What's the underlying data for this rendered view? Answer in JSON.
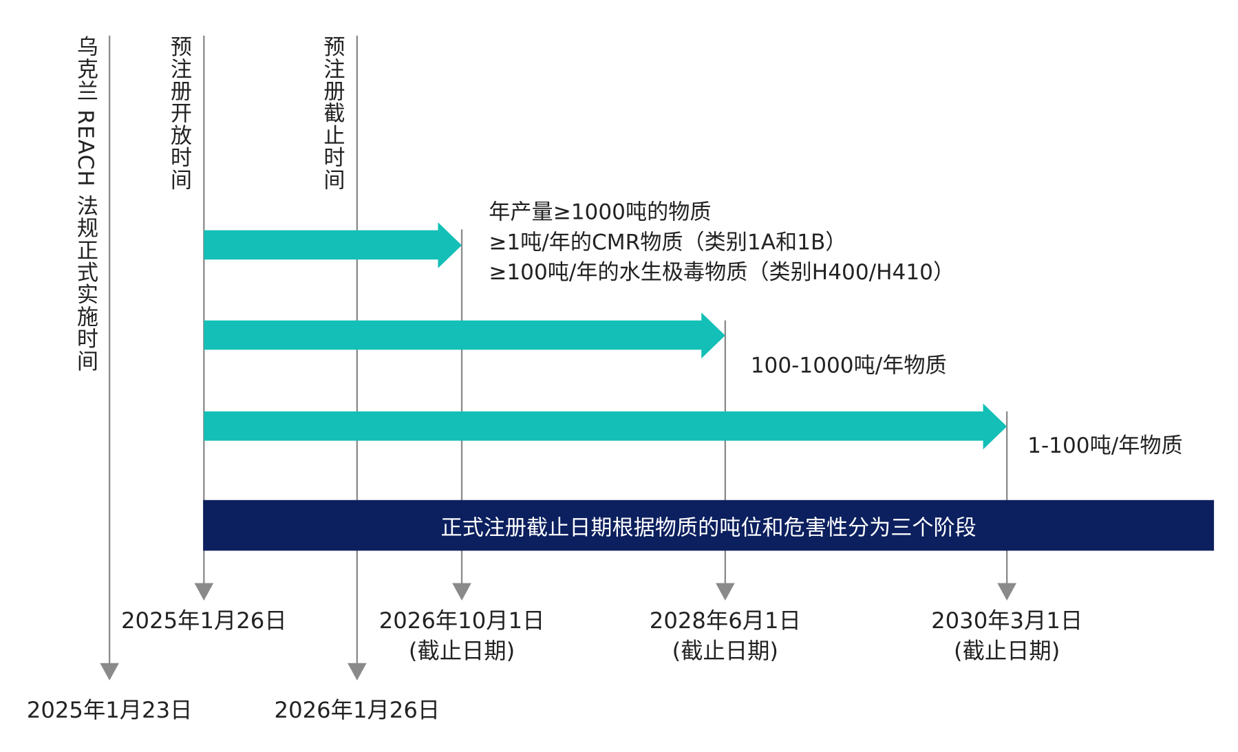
{
  "colors": {
    "arrow": "#13bfb6",
    "banner": "#0c1f5e",
    "line": "#8a8a8a"
  },
  "milestones": {
    "reach_effective": {
      "label": "乌克兰 REACH 法规正式实施时间",
      "date": "2025年1月23日"
    },
    "prereg_open": {
      "label": "预注册开放时间",
      "date": "2025年1月26日"
    },
    "prereg_close": {
      "label": "预注册截止时间",
      "date": "2026年1月26日"
    }
  },
  "phases": [
    {
      "date": "2026年10月1日",
      "note": "(截止日期)",
      "lines": [
        "年产量≥1000吨的物质",
        "≥1吨/年的CMR物质（类别1A和1B）",
        "≥100吨/年的水生极毒物质（类别H400/H410）"
      ]
    },
    {
      "date": "2028年6月1日",
      "note": "(截止日期)",
      "lines": [
        "100-1000吨/年物质"
      ]
    },
    {
      "date": "2030年3月1日",
      "note": "(截止日期)",
      "lines": [
        "1-100吨/年物质"
      ]
    }
  ],
  "banner": "正式注册截止日期根据物质的吨位和危害性分为三个阶段"
}
